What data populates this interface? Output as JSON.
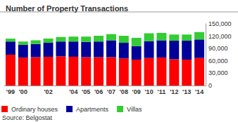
{
  "chart_data": {
    "type": "bar",
    "title": "Number of Property Transactions",
    "source": "Source: Belgostat",
    "categories": [
      "'99",
      "'00",
      null,
      "'02",
      null,
      "'04",
      "'05",
      "'06",
      "'07",
      "'08",
      "'09",
      "'10",
      "'11",
      "'12",
      "'13",
      "'14"
    ],
    "series": [
      {
        "name": "Ordinary houses",
        "color": "#ff0000",
        "values": [
          75000,
          68000,
          69000,
          70000,
          71000,
          70000,
          69000,
          69000,
          69000,
          66000,
          63000,
          67000,
          68000,
          64000,
          63000,
          67000
        ]
      },
      {
        "name": "Apartments",
        "color": "#000099",
        "values": [
          32000,
          31000,
          32000,
          34000,
          36000,
          37000,
          37000,
          38000,
          41000,
          38000,
          33000,
          41000,
          42000,
          45000,
          46000,
          45000
        ]
      },
      {
        "name": "Villas",
        "color": "#33cc33",
        "values": [
          7000,
          8000,
          9000,
          10000,
          11000,
          12000,
          13000,
          14000,
          15000,
          17000,
          20000,
          19000,
          18000,
          15000,
          15000,
          18000
        ]
      }
    ],
    "ylim": [
      0,
      150000
    ],
    "yticks": [
      0,
      {
        "value": 30000,
        "label": "30,000"
      },
      {
        "value": 60000,
        "label": "60,000"
      },
      {
        "value": 90000,
        "label": "90,000"
      },
      {
        "value": 120000,
        "label": "120,000"
      },
      {
        "value": 150000,
        "label": "150,000"
      }
    ],
    "stacked": true,
    "grid": false,
    "legend": "bottom"
  }
}
